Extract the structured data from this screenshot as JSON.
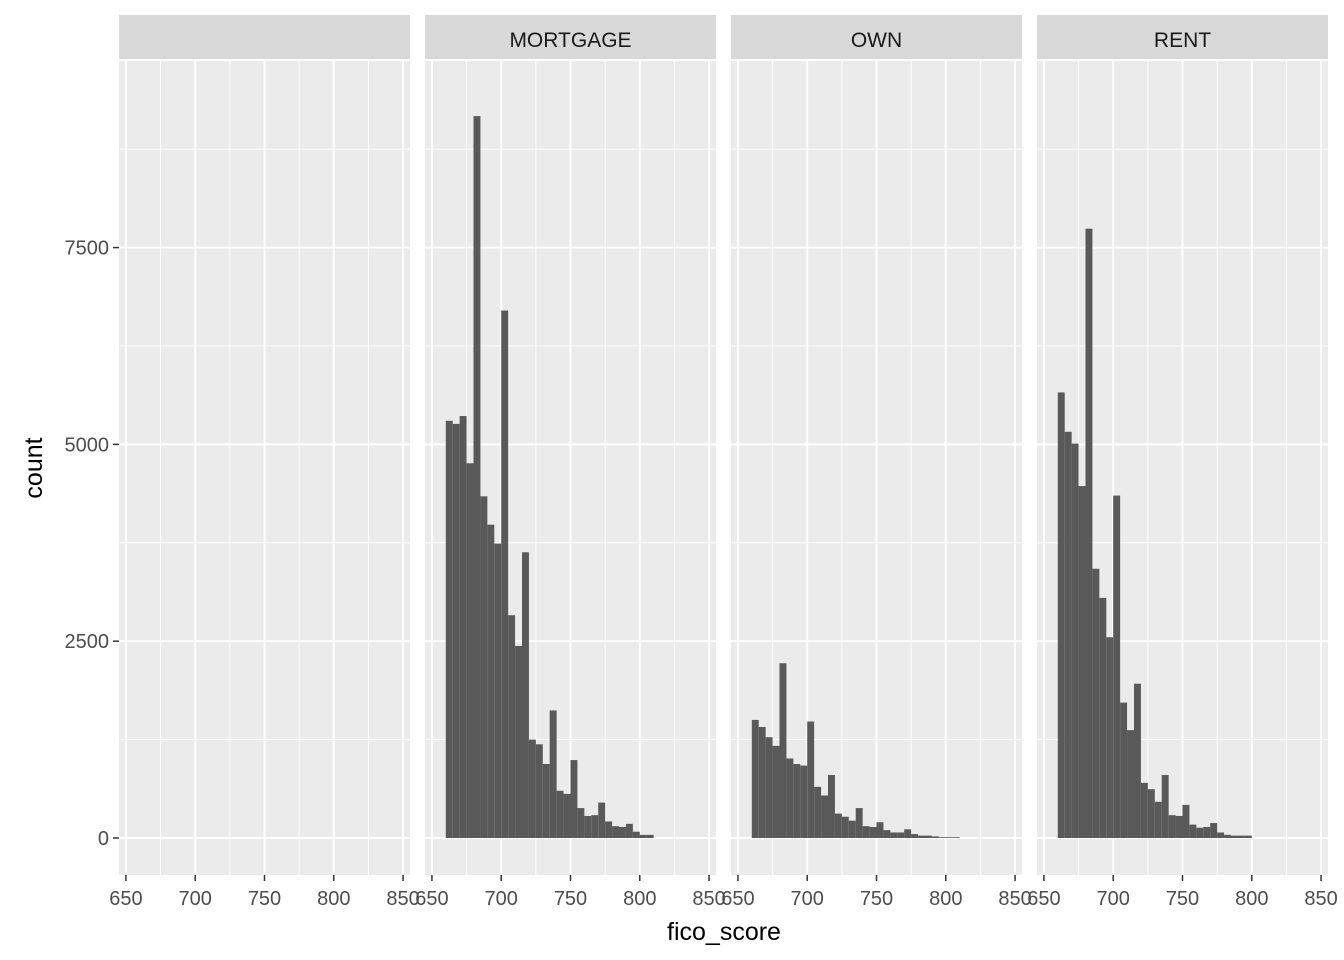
{
  "chart_data": {
    "type": "bar",
    "subtype": "faceted-histogram",
    "xlabel": "fico_score",
    "ylabel": "count",
    "xlim": [
      645,
      855
    ],
    "ylim": [
      -470,
      9870
    ],
    "x_ticks": [
      650,
      700,
      750,
      800,
      850
    ],
    "x_tick_labels": [
      "650",
      "700",
      "750",
      "800",
      "850"
    ],
    "y_ticks": [
      0,
      2500,
      5000,
      7500
    ],
    "y_tick_labels": [
      "0",
      "2500",
      "5000",
      "7500"
    ],
    "bin_width": 5,
    "bin_starts": [
      660,
      665,
      670,
      675,
      680,
      685,
      690,
      695,
      700,
      705,
      710,
      715,
      720,
      725,
      730,
      735,
      740,
      745,
      750,
      755,
      760,
      765,
      770,
      775,
      780,
      785,
      790,
      795,
      800,
      805,
      810,
      815,
      820,
      825,
      830,
      835,
      840,
      845
    ],
    "grid": true,
    "legend": "none",
    "facets": [
      {
        "label": "",
        "values": []
      },
      {
        "label": "MORTGAGE",
        "values": [
          5300,
          5260,
          5360,
          4760,
          9170,
          4340,
          3980,
          3740,
          6700,
          2830,
          2440,
          3630,
          1250,
          1190,
          940,
          1620,
          600,
          560,
          990,
          380,
          280,
          290,
          450,
          210,
          150,
          140,
          180,
          80,
          40,
          40
        ]
      },
      {
        "label": "OWN",
        "values": [
          1500,
          1410,
          1280,
          1170,
          2220,
          1010,
          940,
          920,
          1480,
          650,
          540,
          800,
          310,
          270,
          220,
          380,
          150,
          140,
          200,
          100,
          70,
          70,
          110,
          50,
          30,
          30,
          20,
          10,
          10,
          10
        ]
      },
      {
        "label": "RENT",
        "values": [
          5660,
          5160,
          5010,
          4470,
          7740,
          3420,
          3050,
          2550,
          4350,
          1720,
          1370,
          1960,
          700,
          620,
          460,
          800,
          290,
          280,
          420,
          170,
          130,
          140,
          190,
          70,
          40,
          30,
          30,
          30
        ]
      }
    ],
    "colors": {
      "bar": "#595959",
      "panel_bg": "#ebebeb",
      "strip_bg": "#d9d9d9",
      "grid_line": "#ffffff",
      "tick": "#333333"
    }
  }
}
